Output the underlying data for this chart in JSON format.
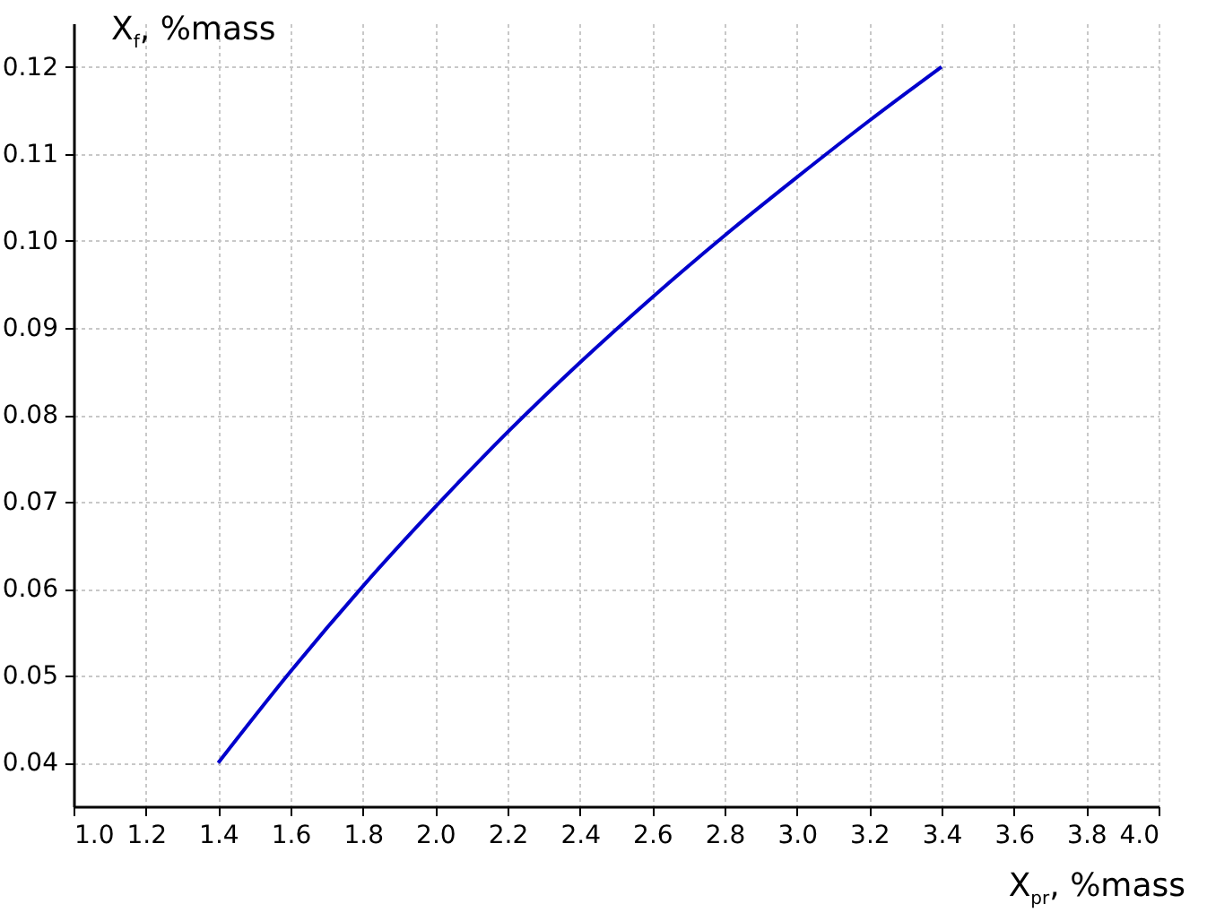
{
  "chart_data": {
    "type": "line",
    "xlabel": "X$_{pr}$, %mass",
    "ylabel": "X$_{f}$, %mass",
    "x": [
      1.4,
      1.6,
      1.8,
      2.0,
      2.2,
      2.4,
      2.6,
      2.8,
      3.0,
      3.2,
      3.4
    ],
    "series": [
      {
        "color": "#0000cc",
        "values": [
          0.04,
          0.0505,
          0.0603,
          0.0694,
          0.078,
          0.086,
          0.0935,
          0.1006,
          0.1073,
          0.1138,
          0.12
        ]
      }
    ],
    "xlim": [
      1.0,
      4.0
    ],
    "xticks": [
      {
        "value": 1.0,
        "label": "1.0"
      },
      {
        "value": 1.2,
        "label": "1.2"
      },
      {
        "value": 1.4,
        "label": "1.4"
      },
      {
        "value": 1.6,
        "label": "1.6"
      },
      {
        "value": 1.8,
        "label": "1.8"
      },
      {
        "value": 2.0,
        "label": "2.0"
      },
      {
        "value": 2.2,
        "label": "2.2"
      },
      {
        "value": 2.4,
        "label": "2.4"
      },
      {
        "value": 2.6,
        "label": "2.6"
      },
      {
        "value": 2.8,
        "label": "2.8"
      },
      {
        "value": 3.0,
        "label": "3.0"
      },
      {
        "value": 3.2,
        "label": "3.2"
      },
      {
        "value": 3.4,
        "label": "3.4"
      },
      {
        "value": 3.6,
        "label": "3.6"
      },
      {
        "value": 3.8,
        "label": "3.8"
      },
      {
        "value": 4.0,
        "label": "4.0"
      }
    ],
    "ylim": [
      0.035,
      0.125
    ],
    "yticks": [
      {
        "value": 0.04,
        "label": "0.04"
      },
      {
        "value": 0.05,
        "label": "0.05"
      },
      {
        "value": 0.06,
        "label": "0.06"
      },
      {
        "value": 0.07,
        "label": "0.07"
      },
      {
        "value": 0.08,
        "label": "0.08"
      },
      {
        "value": 0.09,
        "label": "0.09"
      },
      {
        "value": 0.1,
        "label": "0.10"
      },
      {
        "value": 0.11,
        "label": "0.11"
      },
      {
        "value": 0.12,
        "label": "0.12"
      }
    ],
    "grid": true,
    "line_style": "solid"
  }
}
